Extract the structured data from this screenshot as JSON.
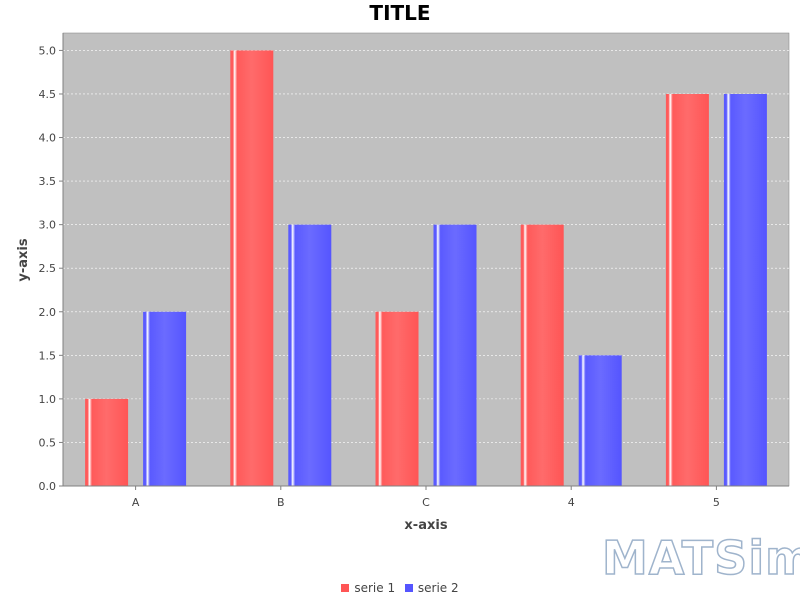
{
  "chart_data": {
    "type": "bar",
    "title": "TITLE",
    "xlabel": "x-axis",
    "ylabel": "y-axis",
    "categories": [
      "A",
      "B",
      "C",
      "4",
      "5"
    ],
    "series": [
      {
        "name": "serie 1",
        "color": "#ff5555",
        "values": [
          1.0,
          5.0,
          2.0,
          3.0,
          4.5
        ]
      },
      {
        "name": "serie 2",
        "color": "#5555ff",
        "values": [
          2.0,
          3.0,
          3.0,
          1.5,
          4.5
        ]
      }
    ],
    "ylim": [
      0,
      5.2
    ],
    "yticks": [
      "0.0",
      "0.5",
      "1.0",
      "1.5",
      "2.0",
      "2.5",
      "3.0",
      "3.5",
      "4.0",
      "4.5",
      "5.0"
    ],
    "grid": true,
    "legend_position": "bottom",
    "plot_background": "#c0c0c0"
  },
  "watermark": "MATSim"
}
